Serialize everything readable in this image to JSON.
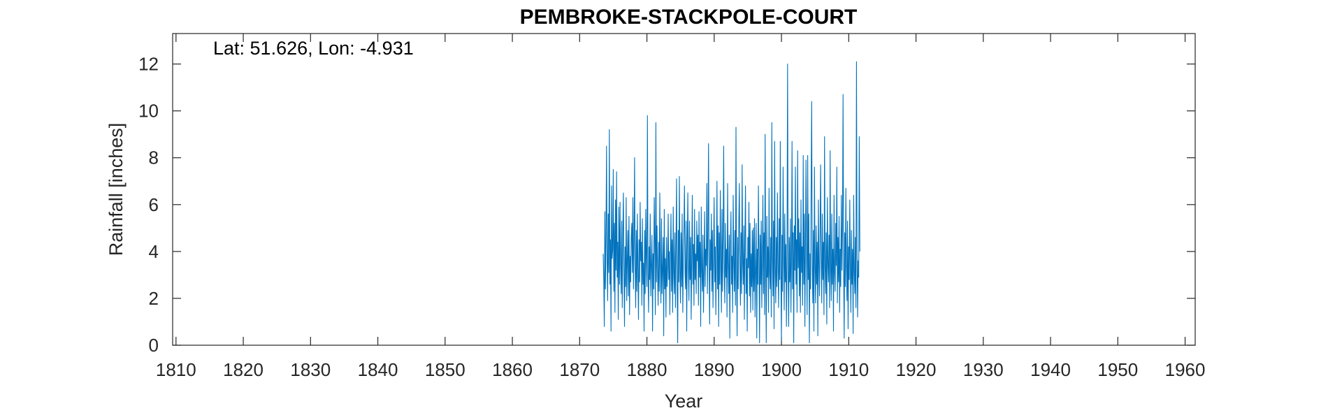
{
  "colors": {
    "series": "#0072BD",
    "axis": "#262626",
    "background": "#ffffff"
  },
  "chart_data": {
    "type": "line",
    "title": "PEMBROKE-STACKPOLE-COURT",
    "annotation": "Lat: 51.626, Lon: -4.931",
    "xlabel": "Year",
    "ylabel": "Rainfall [inches]",
    "xlim": [
      1809.5,
      1961.5
    ],
    "ylim": [
      0,
      13.3
    ],
    "xticks": [
      1810,
      1820,
      1830,
      1840,
      1850,
      1860,
      1870,
      1880,
      1890,
      1900,
      1910,
      1920,
      1930,
      1940,
      1950,
      1960
    ],
    "yticks": [
      0,
      2,
      4,
      6,
      8,
      10,
      12
    ],
    "grid": false,
    "series": [
      {
        "x_start": 1873.5,
        "x_step": 0.0833,
        "values": [
          3.9,
          2.8,
          0.8,
          5.7,
          2.4,
          4.8,
          8.5,
          3.6,
          1.9,
          5.6,
          3.1,
          9.2,
          2.6,
          4.5,
          0.6,
          6.8,
          3.7,
          4.1,
          7.5,
          2.3,
          5.2,
          1.4,
          6.2,
          3.2,
          7.4,
          2.9,
          4.4,
          1.1,
          5.9,
          2.6,
          6.1,
          3.4,
          2.2,
          5.3,
          1.6,
          4.8,
          6.5,
          3.3,
          0.8,
          4.2,
          2.5,
          6.3,
          1.9,
          3.6,
          4.9,
          2.1,
          5.5,
          1.3,
          3.8,
          2.7,
          4.6,
          5.2,
          3.1,
          6.3,
          2.4,
          4.4,
          8.0,
          3.4,
          1.6,
          4.9,
          2.3,
          5.6,
          3.2,
          1.1,
          4.5,
          2.7,
          6.1,
          3.6,
          4.4,
          1.7,
          5.4,
          2.6,
          3.5,
          0.6,
          4.9,
          2.2,
          5.8,
          3.7,
          2.5,
          9.8,
          3.1,
          1.4,
          4.2,
          2.8,
          5.6,
          2.1,
          3.5,
          4.7,
          0.6,
          3.9,
          2.4,
          6.3,
          4.5,
          1.3,
          9.5,
          2.7,
          5.1,
          3.2,
          1.7,
          4.4,
          2.3,
          6.5,
          3.5,
          1.8,
          5.4,
          2.2,
          3.2,
          4.6,
          0.4,
          5.8,
          2.4,
          3.7,
          1.2,
          4.6,
          2.5,
          3.3,
          5.6,
          2.8,
          4.0,
          1.3,
          3.9,
          5.6,
          2.3,
          4.5,
          1.4,
          5.9,
          3.1,
          2.2,
          4.8,
          1.6,
          4.4,
          7.1,
          2.6,
          0.1,
          4.9,
          2.7,
          7.2,
          3.2,
          1.8,
          4.8,
          2.5,
          5.6,
          1.4,
          3.8,
          4.9,
          6.8,
          3.1,
          2.4,
          5.3,
          0.6,
          4.2,
          6.5,
          3.2,
          1.9,
          5.3,
          2.8,
          4.6,
          1.1,
          3.9,
          6.4,
          2.6,
          4.3,
          1.7,
          5.8,
          2.8,
          3.9,
          2.2,
          5.3,
          3.6,
          4.7,
          1.7,
          5.7,
          2.9,
          4.4,
          0.8,
          5.9,
          3.2,
          2.3,
          4.7,
          1.4,
          3.2,
          5.7,
          2.5,
          4.1,
          3.4,
          6.9,
          2.2,
          4.8,
          8.6,
          3.6,
          0.9,
          4.5,
          3.2,
          5.6,
          2.3,
          4.9,
          1.6,
          3.8,
          6.3,
          2.7,
          4.2,
          1.3,
          3.7,
          7.0,
          2.4,
          5.1,
          0.8,
          4.8,
          2.6,
          6.6,
          3.4,
          1.4,
          5.8,
          2.3,
          4.6,
          8.5,
          3.2,
          1.8,
          5.2,
          2.9,
          4.1,
          1.2,
          6.9,
          3.5,
          2.2,
          4.7,
          0.3,
          4.3,
          5.7,
          2.6,
          3.8,
          1.4,
          6.4,
          3.6,
          2.3,
          4.9,
          1.7,
          9.3,
          3.1,
          0.4,
          4.6,
          2.4,
          5.2,
          6.9,
          3.4,
          1.7,
          4.8,
          2.2,
          7.7,
          3.5,
          2.6,
          5.1,
          1.1,
          4.5,
          6.8,
          2.2,
          3.7,
          0.6,
          4.6,
          3.3,
          6.1,
          2.1,
          5.2,
          1.4,
          3.9,
          2.5,
          4.9,
          1.5,
          5.0,
          2.3,
          5.4,
          1.2,
          3.2,
          5.2,
          0.3,
          4.1,
          2.6,
          6.8,
          3.8,
          0.1,
          4.7,
          2.6,
          5.3,
          1.6,
          3.5,
          6.4,
          2.2,
          4.8,
          1.3,
          9.0,
          3.4,
          0.1,
          5.5,
          2.9,
          4.2,
          1.4,
          6.7,
          3.1,
          2.4,
          4.6,
          1.2,
          9.5,
          3.8,
          2.1,
          5.3,
          0.7,
          8.7,
          3.3,
          1.8,
          4.6,
          2.5,
          6.5,
          3.4,
          1.6,
          5.4,
          2.8,
          8.7,
          3.2,
          0.2,
          4.7,
          2.3,
          7.6,
          3.9,
          1.5,
          5.6,
          2.7,
          4.3,
          0.8,
          3.9,
          12.0,
          3.3,
          0.8,
          4.6,
          2.7,
          5.4,
          1.4,
          3.6,
          8.7,
          2.4,
          4.8,
          0.1,
          5.1,
          3.2,
          7.6,
          2.6,
          4.5,
          1.4,
          8.3,
          3.3,
          5.4,
          2.1,
          4.8,
          1.4,
          6.2,
          3.1,
          4.2,
          1.7,
          8.1,
          2.6,
          5.6,
          0.8,
          4.3,
          7.9,
          3.5,
          1.3,
          8.1,
          2.8,
          5.6,
          0.1,
          3.9,
          2.4,
          6.6,
          10.4,
          3.4,
          1.8,
          4.9,
          0.6,
          7.6,
          3.4,
          1.8,
          5.1,
          2.6,
          4.4,
          0.4,
          6.2,
          3.4,
          2.1,
          4.8,
          7.7,
          3.6,
          1.8,
          5.6,
          2.8,
          4.4,
          1.3,
          8.9,
          3.4,
          2.2,
          4.8,
          0.9,
          6.3,
          3.5,
          2.7,
          4.7,
          1.6,
          8.3,
          3.2,
          1.9,
          5.6,
          2.6,
          4.1,
          0.6,
          6.4,
          3.1,
          2.3,
          5.2,
          3.4,
          7.6,
          1.8,
          4.6,
          2.7,
          5.5,
          1.4,
          4.1,
          2.5,
          6.4,
          3.2,
          5.1,
          10.7,
          3.4,
          0.3,
          4.8,
          2.5,
          6.7,
          3.4,
          1.9,
          5.3,
          0.7,
          4.2,
          2.8,
          6.2,
          3.3,
          1.4,
          4.9,
          2.6,
          4.1,
          0.5,
          6.4,
          3.2,
          2.2,
          4.6,
          1.6,
          12.1,
          4.0,
          1.2,
          3.6,
          2.9,
          8.9,
          4.0
        ]
      }
    ]
  }
}
